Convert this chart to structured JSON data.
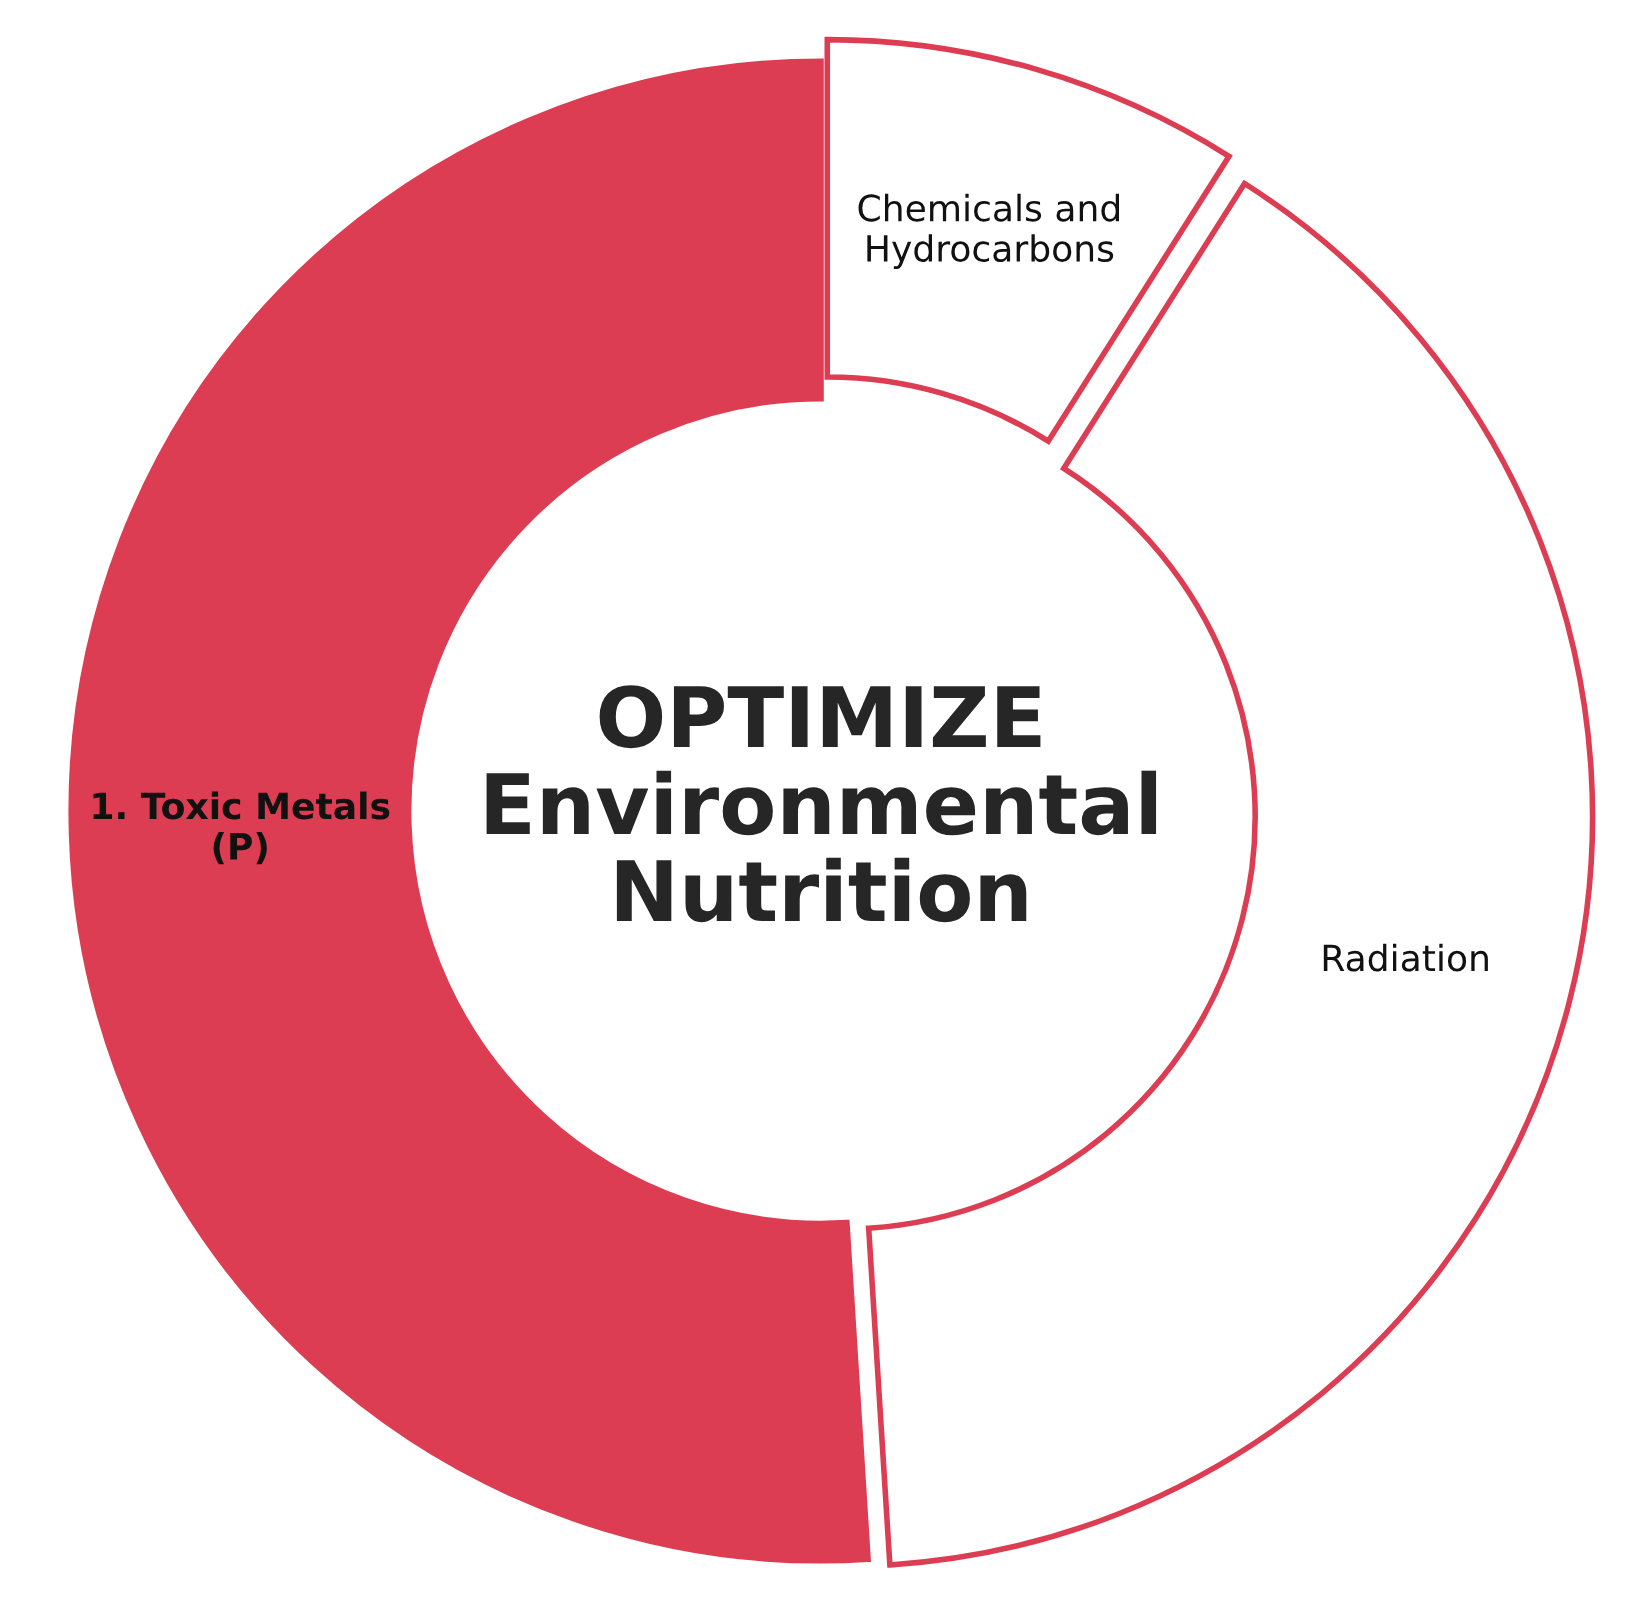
{
  "chart_data": {
    "type": "donut",
    "title": "OPTIMIZE\nEnvironmental\nNutrition",
    "categories": [
      "Chemicals and\nHydrocarbons",
      "Radiation",
      "1. Toxic Metals\n(P)"
    ],
    "values": [
      9,
      40,
      51
    ],
    "colors": [
      "#ffffff",
      "#ffffff",
      "#dc3d52"
    ]
  }
}
